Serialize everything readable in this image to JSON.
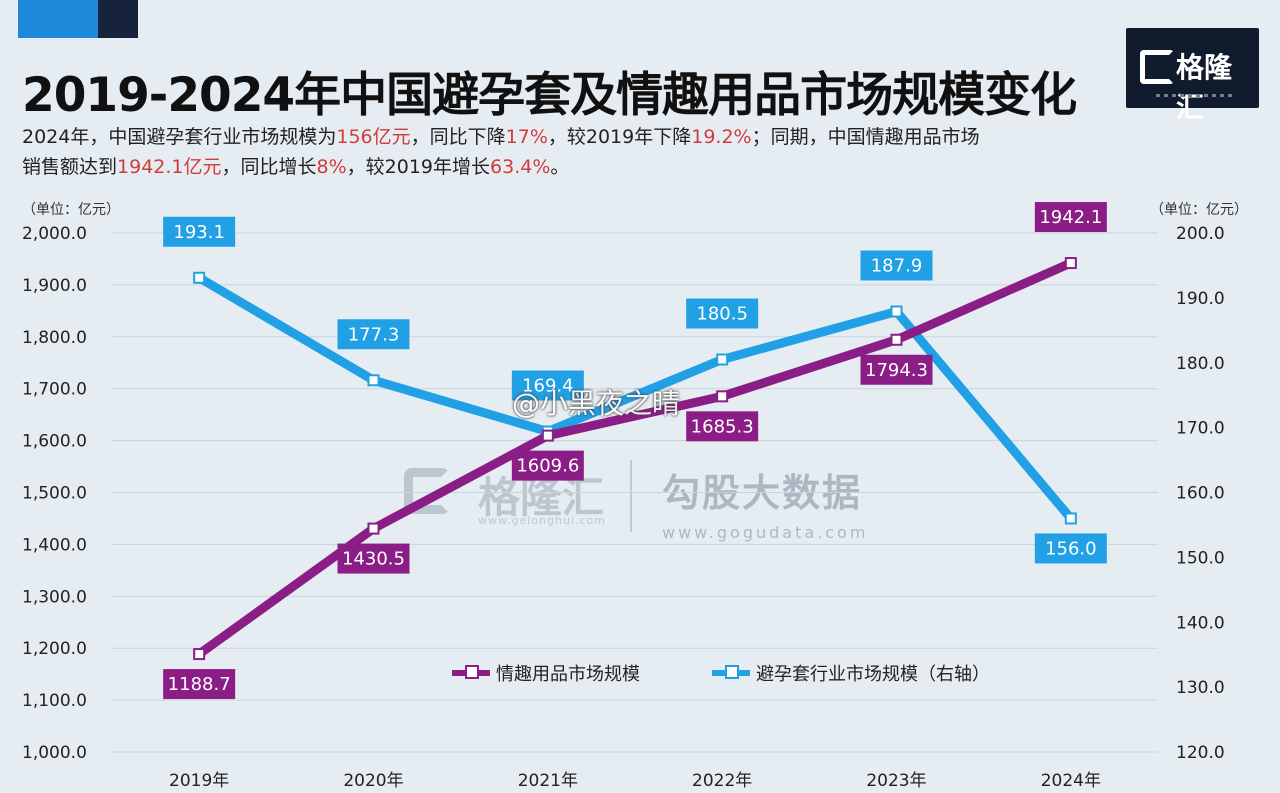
{
  "title": "2019-2024年中国避孕套及情趣用品市场规模变化",
  "summary": {
    "line1": [
      {
        "text": "2024年，中国避孕套行业市场规模为"
      },
      {
        "text": "156亿元",
        "hl": true
      },
      {
        "text": "，同比下降"
      },
      {
        "text": "17%",
        "hl": true
      },
      {
        "text": "，较2019年下降"
      },
      {
        "text": "19.2%",
        "hl": true
      },
      {
        "text": "；同期，中国情趣用品市场"
      }
    ],
    "line2": [
      {
        "text": "销售额达到"
      },
      {
        "text": "1942.1亿元",
        "hl": true
      },
      {
        "text": "，同比增长"
      },
      {
        "text": "8%",
        "hl": true
      },
      {
        "text": "，较2019年增长"
      },
      {
        "text": "63.4%",
        "hl": true
      },
      {
        "text": "。"
      }
    ]
  },
  "logo": {
    "text": "格隆汇",
    "icon": "gelonghui-logo-icon"
  },
  "watermarks": {
    "gelonghui_name": "格隆汇",
    "gelonghui_url": "www.gelonghui.com",
    "gogu_name": "勾股大数据",
    "gogu_url": "www.gogudata.com",
    "weibo": "@小黑夜之晴"
  },
  "units": {
    "left": "（单位：亿元）",
    "right": "（单位：亿元）"
  },
  "colors": {
    "purple": "#8b1d86",
    "blue": "#21a0e6",
    "highlight": "#d33b3b",
    "background": "#e6edf2"
  },
  "chart_data": {
    "type": "line",
    "categories": [
      "2019年",
      "2020年",
      "2021年",
      "2022年",
      "2023年",
      "2024年"
    ],
    "series": [
      {
        "name": "情趣用品市场规模",
        "axis": "left",
        "color": "#8b1d86",
        "values": [
          1188.7,
          1430.5,
          1609.6,
          1685.3,
          1794.3,
          1942.1
        ],
        "labels": [
          "1188.7",
          "1430.5",
          "1609.6",
          "1685.3",
          "1794.3",
          "1942.1"
        ],
        "label_side": [
          "below",
          "below",
          "below",
          "below",
          "below",
          "above"
        ]
      },
      {
        "name": "避孕套行业市场规模（右轴）",
        "axis": "right",
        "color": "#21a0e6",
        "values": [
          193.1,
          177.3,
          169.4,
          180.5,
          187.9,
          156.0
        ],
        "labels": [
          "193.1",
          "177.3",
          "169.4",
          "180.5",
          "187.9",
          "156.0"
        ],
        "label_side": [
          "above",
          "above",
          "above",
          "above",
          "above",
          "below"
        ]
      }
    ],
    "y_left": {
      "min": 1000,
      "max": 2000,
      "ticks": [
        "1,000.0",
        "1,100.0",
        "1,200.0",
        "1,300.0",
        "1,400.0",
        "1,500.0",
        "1,600.0",
        "1,700.0",
        "1,800.0",
        "1,900.0",
        "2,000.0"
      ]
    },
    "y_right": {
      "min": 120,
      "max": 200,
      "ticks": [
        "120.0",
        "130.0",
        "140.0",
        "150.0",
        "160.0",
        "170.0",
        "180.0",
        "190.0",
        "200.0"
      ]
    },
    "legend": [
      "情趣用品市场规模",
      "避孕套行业市场规模（右轴）"
    ],
    "legend_position": "bottom-center",
    "grid": true
  }
}
